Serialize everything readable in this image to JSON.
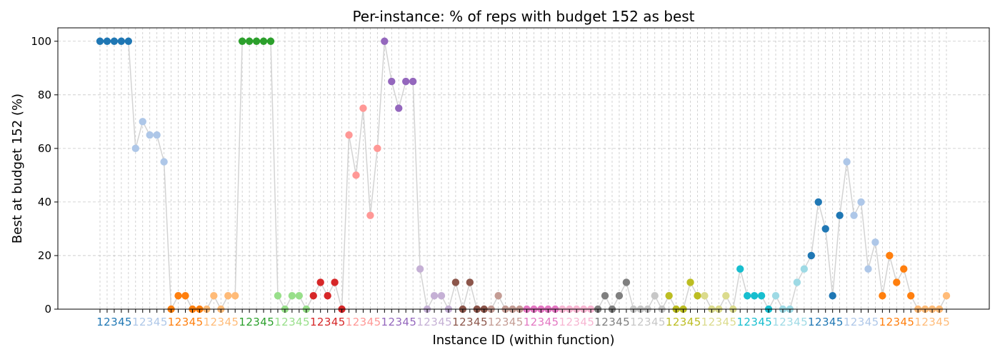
{
  "chart_data": {
    "type": "line",
    "title": "Per-instance: % of reps with budget 152 as best",
    "xlabel": "Instance ID (within function)",
    "ylabel": "Best at budget 152 (%)",
    "ylim": [
      0,
      105
    ],
    "yticks": [
      0,
      20,
      40,
      60,
      80,
      100
    ],
    "grid": true,
    "connector_color": "#d3d3d3",
    "group_tick_labels": [
      "1",
      "2",
      "3",
      "4",
      "5"
    ],
    "groups": [
      {
        "color": "#1f77b4",
        "values": [
          100,
          100,
          100,
          100,
          100
        ]
      },
      {
        "color": "#aec7e8",
        "values": [
          60,
          70,
          65,
          65,
          55
        ]
      },
      {
        "color": "#ff7f0e",
        "values": [
          0,
          5,
          5,
          0,
          0
        ]
      },
      {
        "color": "#ffbb78",
        "values": [
          0,
          5,
          0,
          5,
          5
        ]
      },
      {
        "color": "#2ca02c",
        "values": [
          100,
          100,
          100,
          100,
          100
        ]
      },
      {
        "color": "#98df8a",
        "values": [
          5,
          0,
          5,
          5,
          0
        ]
      },
      {
        "color": "#d62728",
        "values": [
          5,
          10,
          5,
          10,
          0
        ]
      },
      {
        "color": "#ff9896",
        "values": [
          65,
          50,
          75,
          35,
          60
        ]
      },
      {
        "color": "#9467bd",
        "values": [
          100,
          85,
          75,
          85,
          85
        ]
      },
      {
        "color": "#c5b0d5",
        "values": [
          15,
          0,
          5,
          5,
          0
        ]
      },
      {
        "color": "#8c564b",
        "values": [
          10,
          0,
          10,
          0,
          0
        ]
      },
      {
        "color": "#c49c94",
        "values": [
          0,
          5,
          0,
          0,
          0
        ]
      },
      {
        "color": "#e377c2",
        "values": [
          0,
          0,
          0,
          0,
          0
        ]
      },
      {
        "color": "#f7b6d2",
        "values": [
          0,
          0,
          0,
          0,
          0
        ]
      },
      {
        "color": "#7f7f7f",
        "values": [
          0,
          5,
          0,
          5,
          10
        ]
      },
      {
        "color": "#c7c7c7",
        "values": [
          0,
          0,
          0,
          5,
          0
        ]
      },
      {
        "color": "#bcbd22",
        "values": [
          5,
          0,
          0,
          10,
          5
        ]
      },
      {
        "color": "#dbdb8d",
        "values": [
          5,
          0,
          0,
          5,
          0
        ]
      },
      {
        "color": "#17becf",
        "values": [
          15,
          5,
          5,
          5,
          0
        ]
      },
      {
        "color": "#9edae5",
        "values": [
          5,
          0,
          0,
          10,
          15
        ]
      },
      {
        "color": "#1f77b4",
        "values": [
          20,
          40,
          30,
          5,
          35
        ]
      },
      {
        "color": "#aec7e8",
        "values": [
          55,
          35,
          40,
          15,
          25
        ]
      },
      {
        "color": "#ff7f0e",
        "values": [
          5,
          20,
          10,
          15,
          5
        ]
      },
      {
        "color": "#ffbb78",
        "values": [
          0,
          0,
          0,
          0,
          5
        ]
      }
    ]
  }
}
